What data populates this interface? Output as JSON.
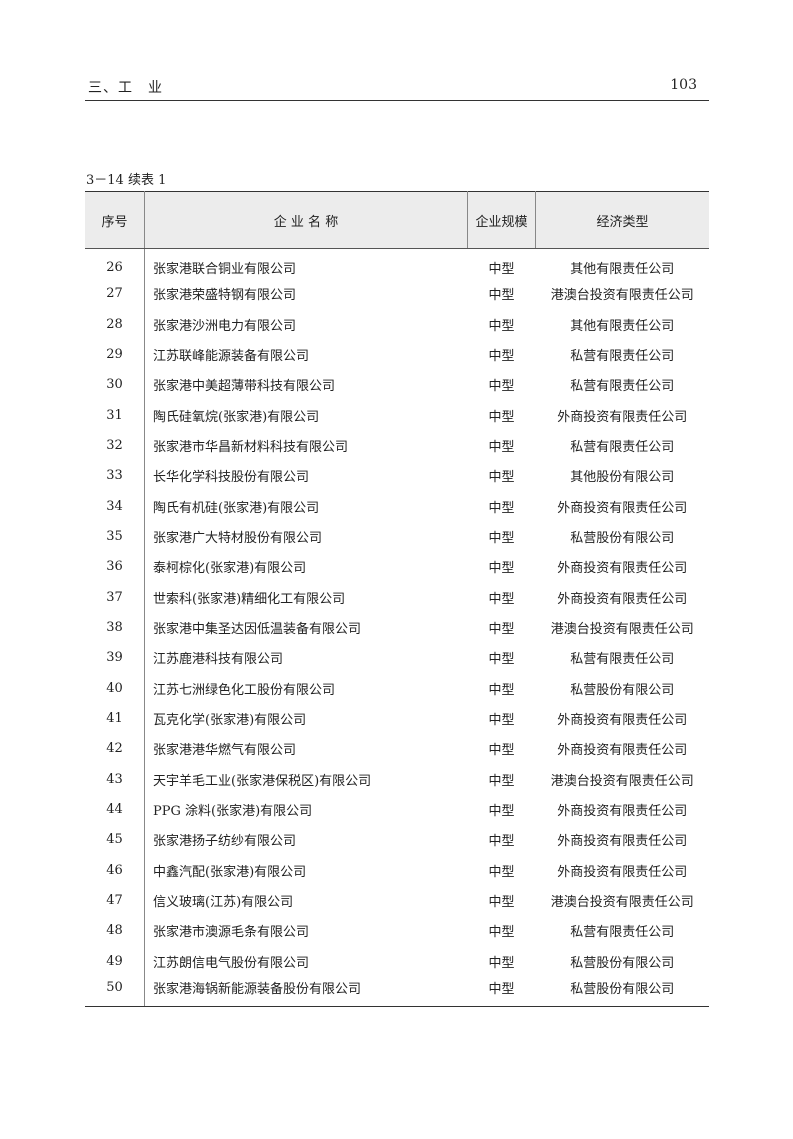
{
  "header": {
    "section": "三、工　业",
    "page_number": "103"
  },
  "table": {
    "caption": "3－14 续表 1",
    "columns": [
      "序号",
      "企 业 名 称",
      "企业规模",
      "经济类型"
    ],
    "rows": [
      [
        "26",
        "张家港联合铜业有限公司",
        "中型",
        "其他有限责任公司"
      ],
      [
        "27",
        "张家港荣盛特钢有限公司",
        "中型",
        "港澳台投资有限责任公司"
      ],
      [
        "28",
        "张家港沙洲电力有限公司",
        "中型",
        "其他有限责任公司"
      ],
      [
        "29",
        "江苏联峰能源装备有限公司",
        "中型",
        "私营有限责任公司"
      ],
      [
        "30",
        "张家港中美超薄带科技有限公司",
        "中型",
        "私营有限责任公司"
      ],
      [
        "31",
        "陶氏硅氧烷(张家港)有限公司",
        "中型",
        "外商投资有限责任公司"
      ],
      [
        "32",
        "张家港市华昌新材料科技有限公司",
        "中型",
        "私营有限责任公司"
      ],
      [
        "33",
        "长华化学科技股份有限公司",
        "中型",
        "其他股份有限公司"
      ],
      [
        "34",
        "陶氏有机硅(张家港)有限公司",
        "中型",
        "外商投资有限责任公司"
      ],
      [
        "35",
        "张家港广大特材股份有限公司",
        "中型",
        "私营股份有限公司"
      ],
      [
        "36",
        "泰柯棕化(张家港)有限公司",
        "中型",
        "外商投资有限责任公司"
      ],
      [
        "37",
        "世索科(张家港)精细化工有限公司",
        "中型",
        "外商投资有限责任公司"
      ],
      [
        "38",
        "张家港中集圣达因低温装备有限公司",
        "中型",
        "港澳台投资有限责任公司"
      ],
      [
        "39",
        "江苏鹿港科技有限公司",
        "中型",
        "私营有限责任公司"
      ],
      [
        "40",
        "江苏七洲绿色化工股份有限公司",
        "中型",
        "私营股份有限公司"
      ],
      [
        "41",
        "瓦克化学(张家港)有限公司",
        "中型",
        "外商投资有限责任公司"
      ],
      [
        "42",
        "张家港港华燃气有限公司",
        "中型",
        "外商投资有限责任公司"
      ],
      [
        "43",
        "天宇羊毛工业(张家港保税区)有限公司",
        "中型",
        "港澳台投资有限责任公司"
      ],
      [
        "44",
        "PPG 涂料(张家港)有限公司",
        "中型",
        "外商投资有限责任公司"
      ],
      [
        "45",
        "张家港扬子纺纱有限公司",
        "中型",
        "外商投资有限责任公司"
      ],
      [
        "46",
        "中鑫汽配(张家港)有限公司",
        "中型",
        "外商投资有限责任公司"
      ],
      [
        "47",
        "信义玻璃(江苏)有限公司",
        "中型",
        "港澳台投资有限责任公司"
      ],
      [
        "48",
        "张家港市澳源毛条有限公司",
        "中型",
        "私营有限责任公司"
      ],
      [
        "49",
        "江苏朗信电气股份有限公司",
        "中型",
        "私营股份有限公司"
      ],
      [
        "50",
        "张家港海锅新能源装备股份有限公司",
        "中型",
        "私营股份有限公司"
      ]
    ]
  }
}
